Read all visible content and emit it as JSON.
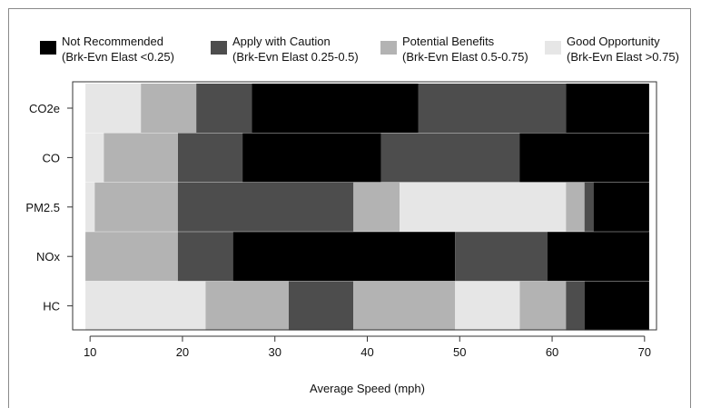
{
  "chart_data": {
    "type": "bar",
    "subtype": "horizontal-segmented-range",
    "title": "",
    "xlabel": "Average Speed (mph)",
    "ylabel": "",
    "xlim": [
      9,
      71
    ],
    "xticks": [
      10,
      20,
      30,
      40,
      50,
      60,
      70
    ],
    "categories": [
      "CO2e",
      "CO",
      "PM2.5",
      "NOx",
      "HC"
    ],
    "legend_position": "top",
    "legend": [
      {
        "key": "not_recommended",
        "line1": "Not Recommended",
        "line2": "(Brk-Evn Elast <0.25)",
        "color": "#000000"
      },
      {
        "key": "apply_with_caution",
        "line1": "Apply with Caution",
        "line2": "(Brk-Evn Elast 0.25-0.5)",
        "color": "#4d4d4d"
      },
      {
        "key": "potential_benefits",
        "line1": "Potential Benefits",
        "line2": "(Brk-Evn Elast 0.5-0.75)",
        "color": "#b3b3b3"
      },
      {
        "key": "good_opportunity",
        "line1": "Good Opportunity",
        "line2": "(Brk-Evn Elast >0.75)",
        "color": "#e6e6e6"
      }
    ],
    "series": [
      {
        "category": "CO2e",
        "segments": [
          {
            "start": 9.5,
            "end": 15.5,
            "class": "good_opportunity"
          },
          {
            "start": 15.5,
            "end": 21.5,
            "class": "potential_benefits"
          },
          {
            "start": 21.5,
            "end": 27.5,
            "class": "apply_with_caution"
          },
          {
            "start": 27.5,
            "end": 45.5,
            "class": "not_recommended"
          },
          {
            "start": 45.5,
            "end": 61.5,
            "class": "apply_with_caution"
          },
          {
            "start": 61.5,
            "end": 70.5,
            "class": "not_recommended"
          }
        ]
      },
      {
        "category": "CO",
        "segments": [
          {
            "start": 9.5,
            "end": 11.5,
            "class": "good_opportunity"
          },
          {
            "start": 11.5,
            "end": 19.5,
            "class": "potential_benefits"
          },
          {
            "start": 19.5,
            "end": 26.5,
            "class": "apply_with_caution"
          },
          {
            "start": 26.5,
            "end": 41.5,
            "class": "not_recommended"
          },
          {
            "start": 41.5,
            "end": 56.5,
            "class": "apply_with_caution"
          },
          {
            "start": 56.5,
            "end": 70.5,
            "class": "not_recommended"
          }
        ]
      },
      {
        "category": "PM2.5",
        "segments": [
          {
            "start": 9.5,
            "end": 10.5,
            "class": "good_opportunity"
          },
          {
            "start": 10.5,
            "end": 19.5,
            "class": "potential_benefits"
          },
          {
            "start": 19.5,
            "end": 38.5,
            "class": "apply_with_caution"
          },
          {
            "start": 38.5,
            "end": 43.5,
            "class": "potential_benefits"
          },
          {
            "start": 43.5,
            "end": 61.5,
            "class": "good_opportunity"
          },
          {
            "start": 61.5,
            "end": 63.5,
            "class": "potential_benefits"
          },
          {
            "start": 63.5,
            "end": 64.5,
            "class": "apply_with_caution"
          },
          {
            "start": 64.5,
            "end": 70.5,
            "class": "not_recommended"
          }
        ]
      },
      {
        "category": "NOx",
        "segments": [
          {
            "start": 9.5,
            "end": 19.5,
            "class": "potential_benefits"
          },
          {
            "start": 19.5,
            "end": 25.5,
            "class": "apply_with_caution"
          },
          {
            "start": 25.5,
            "end": 49.5,
            "class": "not_recommended"
          },
          {
            "start": 49.5,
            "end": 59.5,
            "class": "apply_with_caution"
          },
          {
            "start": 59.5,
            "end": 70.5,
            "class": "not_recommended"
          }
        ]
      },
      {
        "category": "HC",
        "segments": [
          {
            "start": 9.5,
            "end": 22.5,
            "class": "good_opportunity"
          },
          {
            "start": 22.5,
            "end": 31.5,
            "class": "potential_benefits"
          },
          {
            "start": 31.5,
            "end": 38.5,
            "class": "apply_with_caution"
          },
          {
            "start": 38.5,
            "end": 49.5,
            "class": "potential_benefits"
          },
          {
            "start": 49.5,
            "end": 56.5,
            "class": "good_opportunity"
          },
          {
            "start": 56.5,
            "end": 61.5,
            "class": "potential_benefits"
          },
          {
            "start": 61.5,
            "end": 63.5,
            "class": "apply_with_caution"
          },
          {
            "start": 63.5,
            "end": 70.5,
            "class": "not_recommended"
          }
        ]
      }
    ]
  }
}
